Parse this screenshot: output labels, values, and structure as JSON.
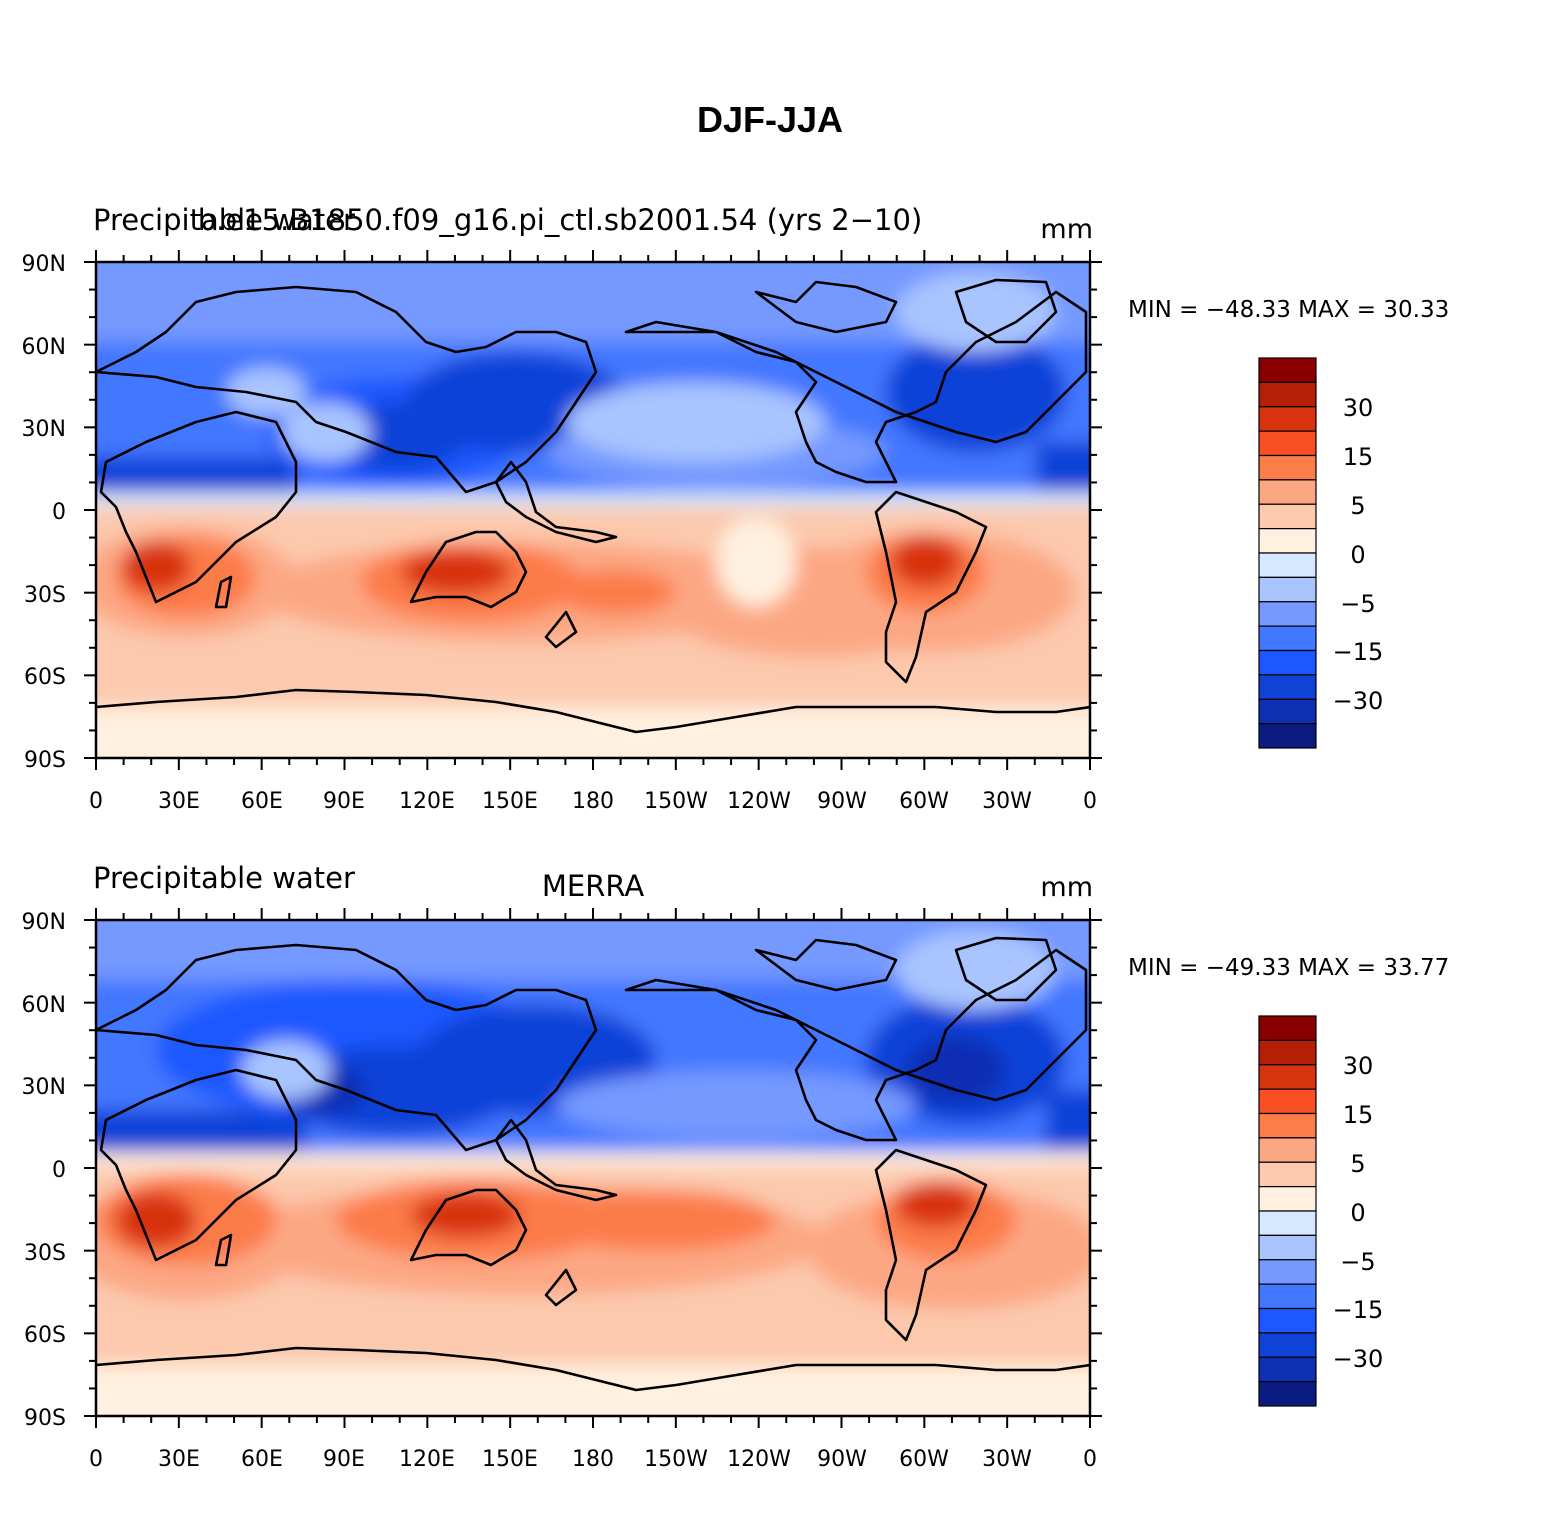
{
  "figure": {
    "title": "DJF-JJA",
    "palette": {
      "levels": [
        "-50",
        "-40",
        "-30",
        "-20",
        "-15",
        "-10",
        "-5",
        "-2",
        "0",
        "2",
        "5",
        "10",
        "15",
        "20",
        "30",
        "40",
        "50"
      ],
      "labels": [
        "30",
        "15",
        "5",
        "0",
        "−5",
        "−15",
        "−30"
      ],
      "colors": [
        "#0a1c82",
        "#0c2fb4",
        "#1042d8",
        "#1b58ff",
        "#4277ff",
        "#7599ff",
        "#a9c4ff",
        "#d6e8ff",
        "#fff0df",
        "#fcc9ad",
        "#fca784",
        "#fc7c4a",
        "#f84e22",
        "#d8330f",
        "#b41f05",
        "#8a0000"
      ]
    },
    "panels": [
      {
        "id": "model",
        "left_string": "Precipitable water",
        "center_string": "b.e15.B1850.f09_g16.pi_ctl.sb2001.54 (yrs 2−10)",
        "right_string": "mm",
        "min_max": "MIN = −48.33 MAX =   30.33",
        "lat_labels": [
          "90N",
          "60N",
          "30N",
          "0",
          "30S",
          "60S",
          "90S"
        ],
        "lon_labels": [
          "0",
          "30E",
          "60E",
          "90E",
          "120E",
          "150E",
          "180",
          "150W",
          "120W",
          "90W",
          "60W",
          "30W",
          "0"
        ]
      },
      {
        "id": "obs",
        "left_string": "Precipitable water",
        "center_string": "MERRA",
        "right_string": "mm",
        "min_max": "MIN = −49.33 MAX =   33.77",
        "lat_labels": [
          "90N",
          "60N",
          "30N",
          "0",
          "30S",
          "60S",
          "90S"
        ],
        "lon_labels": [
          "0",
          "30E",
          "60E",
          "90E",
          "120E",
          "150E",
          "180",
          "150W",
          "120W",
          "90W",
          "60W",
          "30W",
          "0"
        ]
      }
    ]
  }
}
